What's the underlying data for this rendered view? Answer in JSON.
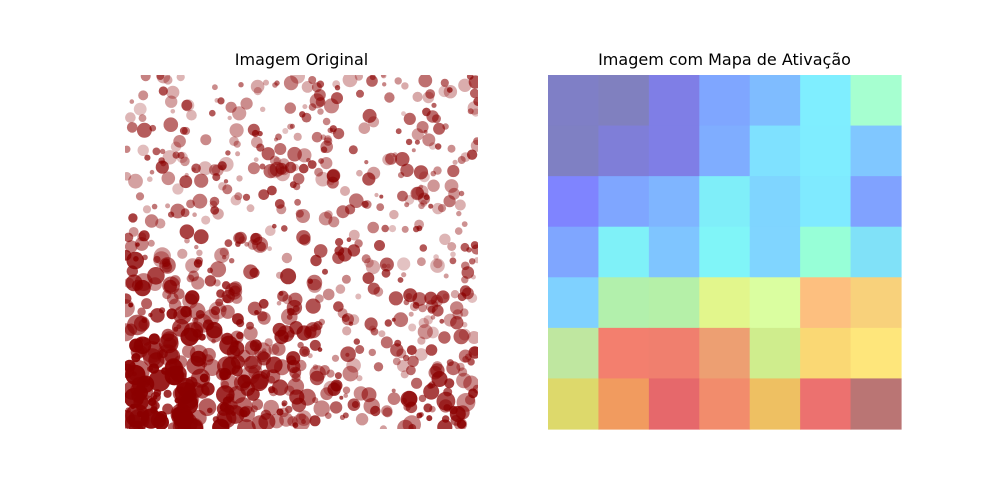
{
  "figure": {
    "left_title": "Imagem Original",
    "right_title": "Imagem com Mapa de Ativação"
  },
  "chart_data": [
    {
      "type": "image",
      "title": "Imagem Original",
      "description_colors": {
        "ink": "#8b0000",
        "background": "#ffffff"
      }
    },
    {
      "type": "heatmap",
      "title": "Imagem com Mapa de Ativação",
      "rows": 7,
      "cols": 7,
      "values": [
        [
          0.05,
          0.06,
          0.14,
          0.28,
          0.32,
          0.42,
          0.55
        ],
        [
          0.06,
          0.1,
          0.12,
          0.3,
          0.38,
          0.42,
          0.36
        ],
        [
          0.13,
          0.3,
          0.33,
          0.42,
          0.37,
          0.42,
          0.27
        ],
        [
          0.28,
          0.42,
          0.35,
          0.43,
          0.37,
          0.5,
          0.4
        ],
        [
          0.37,
          0.58,
          0.58,
          0.68,
          0.66,
          0.78,
          0.76
        ],
        [
          0.62,
          0.9,
          0.88,
          0.82,
          0.64,
          0.74,
          0.72
        ],
        [
          0.68,
          0.83,
          0.92,
          0.85,
          0.76,
          0.91,
          0.96
        ]
      ],
      "cell_colors": [
        [
          "#7f7fc6",
          "#8080bf",
          "#7f7ee6",
          "#7fa6ff",
          "#7fbcff",
          "#7feeff",
          "#a6ffd0"
        ],
        [
          "#7f80c3",
          "#7f7ed8",
          "#7f7ee6",
          "#7fadff",
          "#7fe1ff",
          "#7fedff",
          "#80c7ff"
        ],
        [
          "#7f84ff",
          "#7fa6ff",
          "#7fb5ff",
          "#7feef9",
          "#7fd5ff",
          "#7feaff",
          "#80a2ff"
        ],
        [
          "#7fa6ff",
          "#7ff1f8",
          "#7fc5ff",
          "#80f5f8",
          "#80d5ff",
          "#97ffd7",
          "#80e1f8"
        ],
        [
          "#7fd1ff",
          "#b2f0ac",
          "#b5f0a8",
          "#e2f68c",
          "#dafea0",
          "#fdbf7f",
          "#f8d17b"
        ],
        [
          "#bfe7a0",
          "#f37f6e",
          "#f07f6e",
          "#ed9f72",
          "#cfed8d",
          "#fad874",
          "#fee67b"
        ],
        [
          "#ddd96b",
          "#f19b5f",
          "#e6686b",
          "#f28c6c",
          "#eec062",
          "#ec716f",
          "#ba7574"
        ]
      ]
    }
  ]
}
